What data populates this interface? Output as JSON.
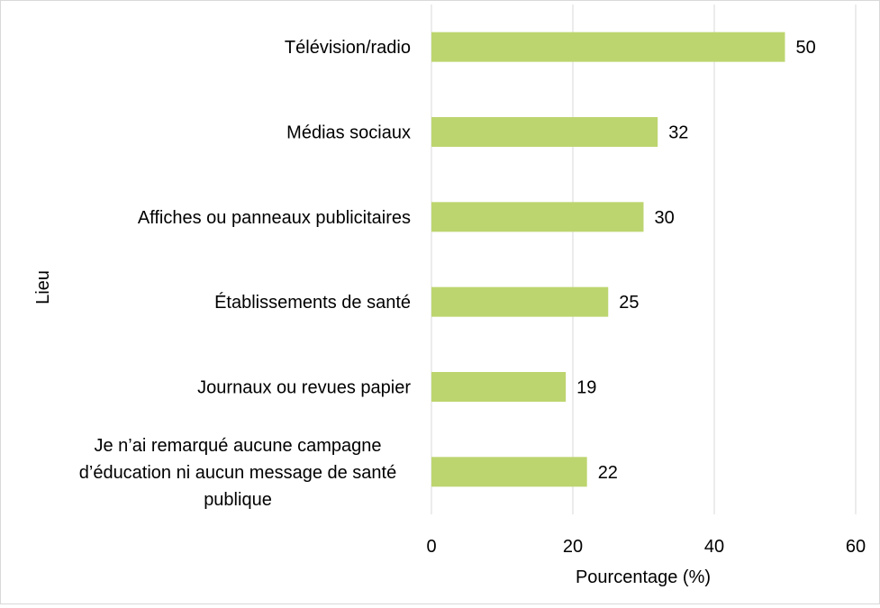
{
  "chart_data": {
    "type": "bar",
    "orientation": "horizontal",
    "categories": [
      "Télévision/radio",
      "Médias sociaux",
      "Affiches ou panneaux publicitaires",
      "Établissements de santé",
      "Journaux ou revues papier",
      "Je n’ai remarqué aucune campagne d’éducation ni aucun message de santé publique"
    ],
    "category_lines": [
      [
        "Télévision/radio"
      ],
      [
        "Médias sociaux"
      ],
      [
        "Affiches ou panneaux publicitaires"
      ],
      [
        "Établissements de santé"
      ],
      [
        "Journaux ou revues papier"
      ],
      [
        "Je n’ai remarqué aucune campagne",
        "d’éducation ni aucun message de santé",
        "publique"
      ]
    ],
    "values": [
      50,
      32,
      30,
      25,
      19,
      22
    ],
    "data_labels": [
      "50",
      "32",
      "30",
      "25",
      "19",
      "22"
    ],
    "xlabel": "Pourcentage (%)",
    "ylabel": "Lieu",
    "xlim": [
      0,
      60
    ],
    "xticks": [
      0,
      20,
      40,
      60
    ],
    "xtick_labels": [
      "0",
      "20",
      "40",
      "60"
    ],
    "grid": "vertical",
    "legend": "none",
    "bar_color": "#bdd56f",
    "grid_color": "#d9d9d9"
  }
}
